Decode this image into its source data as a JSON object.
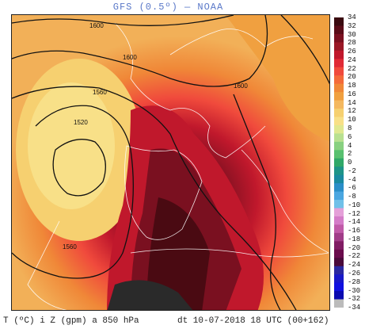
{
  "title": "GFS (0.5º) — NOAA",
  "footer": {
    "variable": "T (ºC) i Z (gpm) a 850 hPa",
    "run": "dt 10-07-2018 18 UTC (00+162)"
  },
  "isobar_labels": [
    "1600",
    "1600",
    "1600",
    "1560",
    "1520",
    "1560"
  ],
  "legend": {
    "ticks": [
      "34",
      "32",
      "30",
      "28",
      "26",
      "24",
      "22",
      "20",
      "18",
      "16",
      "14",
      "12",
      "10",
      "8",
      "6",
      "4",
      "2",
      "0",
      "-2",
      "-4",
      "-6",
      "-8",
      "-10",
      "-12",
      "-14",
      "-16",
      "-18",
      "-20",
      "-22",
      "-24",
      "-26",
      "-28",
      "-30",
      "-32",
      "-34"
    ],
    "colors": [
      "#3a0a10",
      "#5a0c18",
      "#7a1020",
      "#9a1826",
      "#c0182c",
      "#e02a36",
      "#f04a3c",
      "#f46a3a",
      "#f08838",
      "#f0a040",
      "#f4b860",
      "#f6d070",
      "#f8e088",
      "#e0e890",
      "#b8e090",
      "#88d080",
      "#58c070",
      "#30a868",
      "#1e9488",
      "#1a8aa0",
      "#2a8ec8",
      "#4aa6e0",
      "#70c0e8",
      "#e4a0d8",
      "#d47cc8",
      "#c05aa8",
      "#a03c88",
      "#801c64",
      "#6a0c4c",
      "#4a0a3a",
      "#2a28a0",
      "#1818c8",
      "#1010e0",
      "#0a0ab0",
      "#bbbbbb"
    ]
  }
}
